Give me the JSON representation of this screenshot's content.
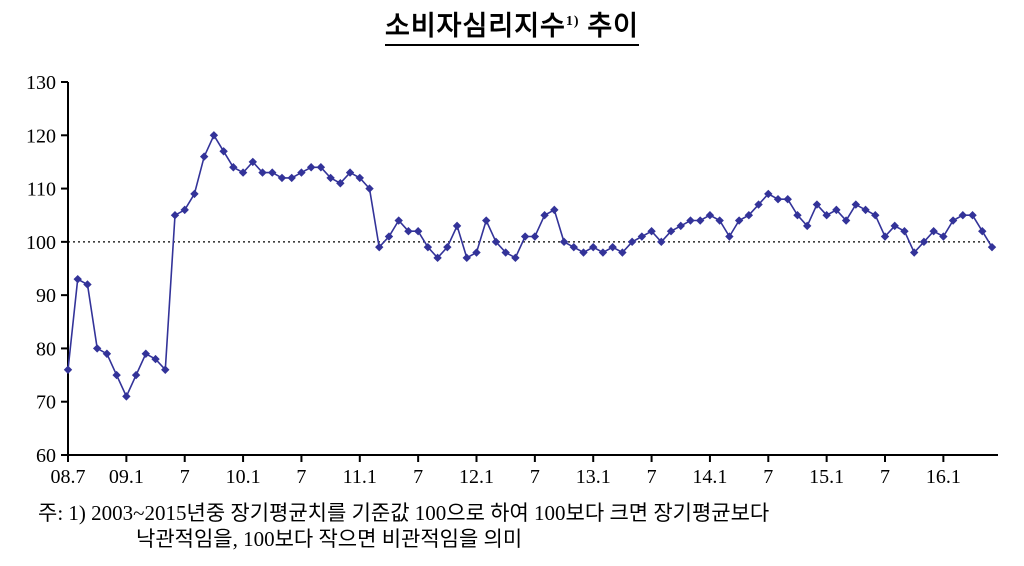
{
  "title": {
    "text": "소비자심리지수",
    "superscript": "1)",
    "suffix": " 추이"
  },
  "footnote": {
    "line1": "주: 1) 2003~2015년중 장기평균치를 기준값 100으로 하여 100보다 크면 장기평균보다",
    "line2": "낙관적임을, 100보다 작으면 비관적임을 의미"
  },
  "chart_data": {
    "type": "line",
    "title": "소비자심리지수1) 추이",
    "xlabel": "",
    "ylabel": "",
    "ylim": [
      60,
      130
    ],
    "y_ticks": [
      60,
      70,
      80,
      90,
      100,
      110,
      120,
      130
    ],
    "x_start_month": "2008-07",
    "x_frequency": "monthly",
    "x_tick_labels": [
      "08.7",
      "09.1",
      "7",
      "10.1",
      "7",
      "11.1",
      "7",
      "12.1",
      "7",
      "13.1",
      "7",
      "14.1",
      "7",
      "15.1",
      "7",
      "16.1"
    ],
    "x_tick_month_indices": [
      0,
      6,
      12,
      18,
      24,
      30,
      36,
      42,
      48,
      54,
      60,
      66,
      72,
      78,
      84,
      90
    ],
    "reference_line": {
      "value": 100,
      "style": "dotted",
      "color": "#000000"
    },
    "grid": false,
    "legend_position": "none",
    "line_color": "#333399",
    "marker": "diamond",
    "series": [
      {
        "name": "소비자심리지수",
        "values": [
          76,
          93,
          92,
          80,
          79,
          75,
          71,
          75,
          79,
          78,
          76,
          105,
          106,
          109,
          116,
          120,
          117,
          114,
          113,
          115,
          113,
          113,
          112,
          112,
          113,
          114,
          114,
          112,
          111,
          113,
          112,
          110,
          99,
          101,
          104,
          102,
          102,
          99,
          97,
          99,
          103,
          97,
          98,
          104,
          100,
          98,
          97,
          101,
          101,
          105,
          106,
          100,
          99,
          98,
          99,
          98,
          99,
          98,
          100,
          101,
          102,
          100,
          102,
          103,
          104,
          104,
          105,
          104,
          101,
          104,
          105,
          107,
          109,
          108,
          108,
          105,
          103,
          107,
          105,
          106,
          104,
          107,
          106,
          105,
          101,
          103,
          102,
          98,
          100,
          102,
          101,
          104,
          105,
          105,
          102,
          99
        ]
      }
    ]
  }
}
